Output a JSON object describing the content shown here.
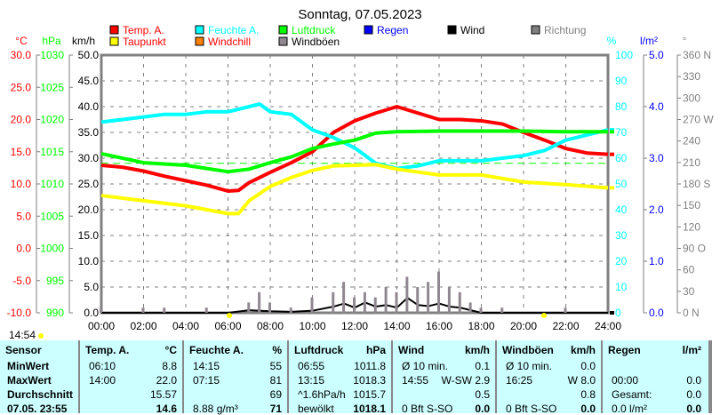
{
  "chart_data": {
    "type": "line",
    "title": "Sonntag, 07.05.2023",
    "x_ticks": [
      "00:00",
      "02:00",
      "04:00",
      "06:00",
      "08:00",
      "10:00",
      "12:00",
      "14:00",
      "16:00",
      "18:00",
      "20:00",
      "22:00",
      "24:00"
    ],
    "axes": {
      "temp": {
        "unit": "°C",
        "range": [
          -10,
          30
        ],
        "ticks": [
          "30.0",
          "25.0",
          "20.0",
          "15.0",
          "10.0",
          "5.0",
          "0.0",
          "-5.0",
          "-10.0"
        ],
        "color": "#ff0000"
      },
      "pressure": {
        "unit": "hPa",
        "range": [
          990,
          1030
        ],
        "ticks": [
          "1030",
          "1025",
          "1020",
          "1015",
          "1010",
          "1005",
          "1000",
          "995",
          "990"
        ],
        "color": "#00ff00"
      },
      "wind": {
        "unit": "km/h",
        "range": [
          0,
          50
        ],
        "ticks": [
          "50.0",
          "45.0",
          "40.0",
          "35.0",
          "30.0",
          "25.0",
          "20.0",
          "15.0",
          "10.0",
          "5.0",
          "0.0"
        ],
        "color": "#000000"
      },
      "humidity": {
        "unit": "%",
        "range": [
          0,
          100
        ],
        "ticks": [
          "100",
          "90",
          "80",
          "70",
          "60",
          "50",
          "40",
          "30",
          "20",
          "10",
          "0"
        ],
        "color": "#00ffff"
      },
      "rain": {
        "unit": "l/m²",
        "range": [
          0,
          5
        ],
        "ticks": [
          "5.0",
          "4.0",
          "3.0",
          "2.0",
          "1.0",
          "0.0"
        ],
        "color": "#0000ff"
      },
      "direction": {
        "unit": "°",
        "range": [
          0,
          360
        ],
        "ticks": [
          "360 N",
          "330",
          "300",
          "270 W",
          "240",
          "210",
          "180 S",
          "150",
          "120",
          "90  O",
          "60",
          "30",
          "0   N"
        ],
        "color": "#808080"
      }
    },
    "legend": [
      {
        "label": "Temp. A.",
        "color": "#ff0000",
        "text_color": "#ff0000"
      },
      {
        "label": "Feuchte A.",
        "color": "#00ffff",
        "text_color": "#00ffff"
      },
      {
        "label": "Luftdruck",
        "color": "#00ff00",
        "text_color": "#00ff00"
      },
      {
        "label": "Regen",
        "color": "#0000ff",
        "text_color": "#0000ff"
      },
      {
        "label": "Wind",
        "color": "#000000",
        "text_color": "#000000"
      },
      {
        "label": "Richtung",
        "color": "#808080",
        "text_color": "#808080"
      },
      {
        "label": "Taupunkt",
        "color": "#ffff00",
        "text_color": "#ff0000"
      },
      {
        "label": "Windchill",
        "color": "#ff8000",
        "text_color": "#ff0000"
      },
      {
        "label": "Windböen",
        "color": "#908890",
        "text_color": "#000000"
      }
    ],
    "series": [
      {
        "name": "Temp. A.",
        "axis": "temp",
        "color": "#ff0000",
        "x": [
          0,
          1,
          2,
          3,
          4,
          5,
          6,
          6.5,
          7,
          8,
          9,
          10,
          11,
          12,
          13,
          14,
          15,
          16,
          17,
          18,
          19,
          20,
          21,
          22,
          23,
          24
        ],
        "values": [
          12.9,
          12.6,
          12.0,
          11.2,
          10.5,
          9.8,
          8.9,
          9.0,
          10.2,
          11.8,
          13.3,
          15.0,
          18.0,
          19.8,
          21.0,
          22.0,
          21.0,
          20.0,
          20.0,
          19.8,
          19.3,
          18.0,
          16.8,
          15.5,
          14.8,
          14.6
        ]
      },
      {
        "name": "Feuchte A.",
        "axis": "humidity",
        "color": "#00ffff",
        "x": [
          0,
          1,
          2,
          3,
          4,
          5,
          6,
          7,
          7.5,
          8,
          9,
          10,
          11,
          12,
          13,
          14,
          15,
          16,
          17,
          18,
          19,
          20,
          21,
          22,
          23,
          24
        ],
        "values": [
          74,
          75,
          76,
          77,
          77,
          78,
          78,
          80,
          81,
          78,
          77,
          71,
          68,
          64,
          58,
          56,
          57,
          59,
          59,
          59,
          60,
          61,
          63,
          67,
          69,
          71
        ]
      },
      {
        "name": "Luftdruck",
        "axis": "pressure",
        "color": "#00ff00",
        "x": [
          0,
          2,
          4,
          6,
          7,
          8,
          9,
          10,
          11,
          12,
          13,
          14,
          16,
          18,
          20,
          22,
          24
        ],
        "values": [
          1014.7,
          1013.3,
          1012.9,
          1011.9,
          1012.3,
          1013.3,
          1014.2,
          1015.5,
          1016.2,
          1016.8,
          1017.9,
          1018.1,
          1018.2,
          1018.2,
          1018.2,
          1018.1,
          1018.1
        ]
      },
      {
        "name": "Taupunkt",
        "axis": "temp",
        "color": "#ffff00",
        "x": [
          0,
          2,
          4,
          6,
          6.5,
          7,
          8,
          9,
          10,
          11,
          12,
          13,
          14,
          16,
          18,
          20,
          22,
          24
        ],
        "values": [
          8.2,
          7.4,
          6.6,
          5.4,
          5.4,
          7.4,
          9.6,
          11.0,
          12.1,
          12.8,
          12.9,
          13.0,
          12.3,
          11.4,
          11.4,
          10.3,
          9.9,
          9.4
        ]
      },
      {
        "name": "Wind",
        "axis": "wind",
        "color": "#000000",
        "x": [
          0,
          6,
          7,
          8,
          9,
          10,
          11,
          11.5,
          12,
          12.5,
          13,
          13.5,
          14,
          14.5,
          15,
          15.5,
          16,
          16.5,
          17,
          17.5,
          18,
          19,
          24
        ],
        "values": [
          0,
          0,
          0.5,
          0.3,
          0.2,
          0.4,
          1.2,
          1.8,
          1.0,
          2.0,
          1.2,
          1.5,
          1.0,
          2.9,
          1.5,
          1.3,
          1.8,
          1.2,
          1.0,
          0.5,
          0,
          0,
          0
        ]
      },
      {
        "name": "Windböen",
        "axis": "wind",
        "color": "#908890",
        "x": [
          0,
          1,
          2,
          3,
          4,
          5,
          6,
          7,
          7.5,
          8,
          9,
          10,
          11,
          11.5,
          12,
          12.5,
          13,
          13.5,
          14,
          14.5,
          15,
          15.5,
          16,
          16.5,
          17,
          17.5,
          18,
          19,
          20,
          21,
          22,
          23,
          24
        ],
        "values": [
          1,
          0,
          1,
          1,
          0,
          1,
          0,
          2,
          4,
          2,
          1,
          3,
          4,
          6,
          3,
          4,
          3,
          5,
          4,
          7,
          5,
          6,
          8,
          5,
          4,
          2,
          1,
          1,
          0,
          0,
          1,
          0,
          0
        ]
      }
    ],
    "reference_line": {
      "axis": "pressure",
      "value": 1013.2,
      "color": "#00ff00"
    },
    "current_time": "14:54"
  },
  "table": {
    "headers": [
      [
        "Sensor",
        ""
      ],
      [
        "Temp. A.",
        "°C"
      ],
      [
        "Feuchte A.",
        "%"
      ],
      [
        "Luftdruck",
        "hPa"
      ],
      [
        "Wind",
        "km/h"
      ],
      [
        "Windböen",
        "km/h"
      ],
      [
        "Regen",
        "l/m²"
      ]
    ],
    "rows": [
      {
        "label": "MinWert",
        "cells": [
          [
            "06:10",
            "8.8"
          ],
          [
            "14:15",
            "55"
          ],
          [
            "06:55",
            "1011.8"
          ],
          [
            "Ø 10 min.",
            "0.1"
          ],
          [
            "Ø 10 min.",
            "0.0"
          ],
          [
            "",
            ""
          ]
        ]
      },
      {
        "label": "MaxWert",
        "cells": [
          [
            "14:00",
            "22.0"
          ],
          [
            "07:15",
            "81"
          ],
          [
            "13:15",
            "1018.3"
          ],
          [
            "14:55",
            "W-SW 2.9"
          ],
          [
            "16:25",
            "W 8.0"
          ],
          [
            "00:00",
            "0.0"
          ]
        ]
      },
      {
        "label": "Durchschnitt",
        "cells": [
          [
            "",
            "15.57"
          ],
          [
            "",
            "69"
          ],
          [
            "^1.6hPa/h",
            "1015.7"
          ],
          [
            "",
            "0.5"
          ],
          [
            "",
            "0.8"
          ],
          [
            "Gesamt:",
            "0.0"
          ]
        ]
      },
      {
        "label": "07.05. 23:55",
        "cells": [
          [
            "",
            "14.6"
          ],
          [
            "8.88 g/m³",
            "71"
          ],
          [
            "bewölkt",
            "1018.1"
          ],
          [
            "0 Bft S-SO",
            "0.0"
          ],
          [
            "0 Bft S-SO",
            "0.0"
          ],
          [
            "0.0 l/m²",
            "0.0"
          ]
        ]
      }
    ]
  }
}
